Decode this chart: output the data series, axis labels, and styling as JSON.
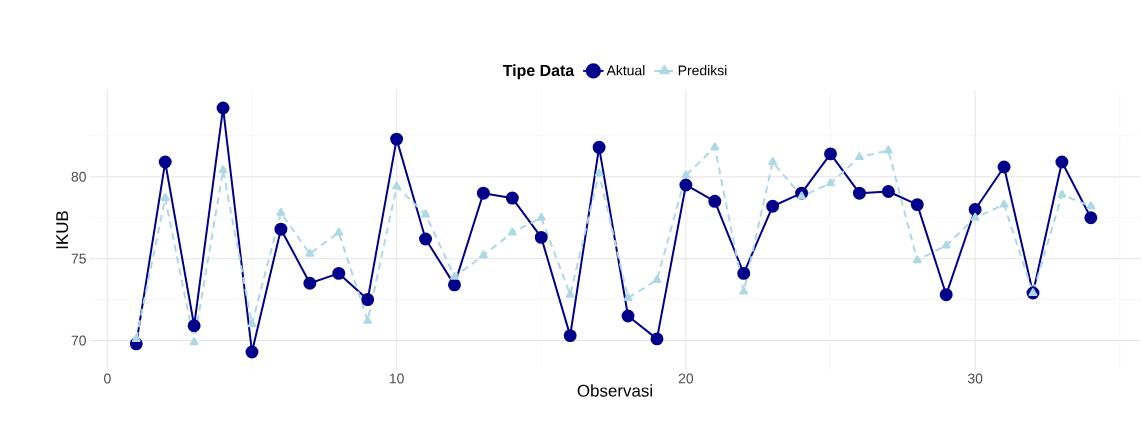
{
  "chart_data": {
    "type": "line",
    "xlabel": "Observasi",
    "ylabel": "IKUB",
    "legend_title": "Tipe Data",
    "x": [
      1,
      2,
      3,
      4,
      5,
      6,
      7,
      8,
      9,
      10,
      11,
      12,
      13,
      14,
      15,
      16,
      17,
      18,
      19,
      20,
      21,
      22,
      23,
      24,
      25,
      26,
      27,
      28,
      29,
      30,
      31,
      32,
      33,
      34
    ],
    "series": [
      {
        "name": "Aktual",
        "color": "#00008b",
        "marker": "circle",
        "line_style": "solid",
        "values": [
          69.8,
          80.9,
          70.9,
          84.2,
          69.3,
          76.8,
          73.5,
          74.1,
          72.5,
          82.3,
          76.2,
          73.4,
          79.0,
          78.7,
          76.3,
          70.3,
          81.8,
          71.5,
          70.1,
          79.5,
          78.5,
          74.1,
          78.2,
          79.0,
          81.4,
          79.0,
          79.1,
          78.3,
          72.8,
          78.0,
          80.6,
          72.9,
          80.9,
          77.5
        ]
      },
      {
        "name": "Prediksi",
        "color": "#add8e6",
        "marker": "triangle",
        "line_style": "dashed",
        "values": [
          70.1,
          78.7,
          69.9,
          80.4,
          71.0,
          77.8,
          75.3,
          76.6,
          71.2,
          79.4,
          77.7,
          73.9,
          75.2,
          76.6,
          77.5,
          72.8,
          80.2,
          72.6,
          73.7,
          80.1,
          81.8,
          73.0,
          80.9,
          78.8,
          79.6,
          81.2,
          81.6,
          74.9,
          75.8,
          77.5,
          78.3,
          72.9,
          78.9,
          78.2
        ]
      }
    ],
    "xlim": [
      -0.6,
      35.7
    ],
    "ylim": [
      68.2,
      85.3
    ],
    "xticks": [
      0,
      10,
      20,
      30
    ],
    "yticks": [
      70,
      75,
      80
    ],
    "grid": true,
    "legend": "top"
  }
}
